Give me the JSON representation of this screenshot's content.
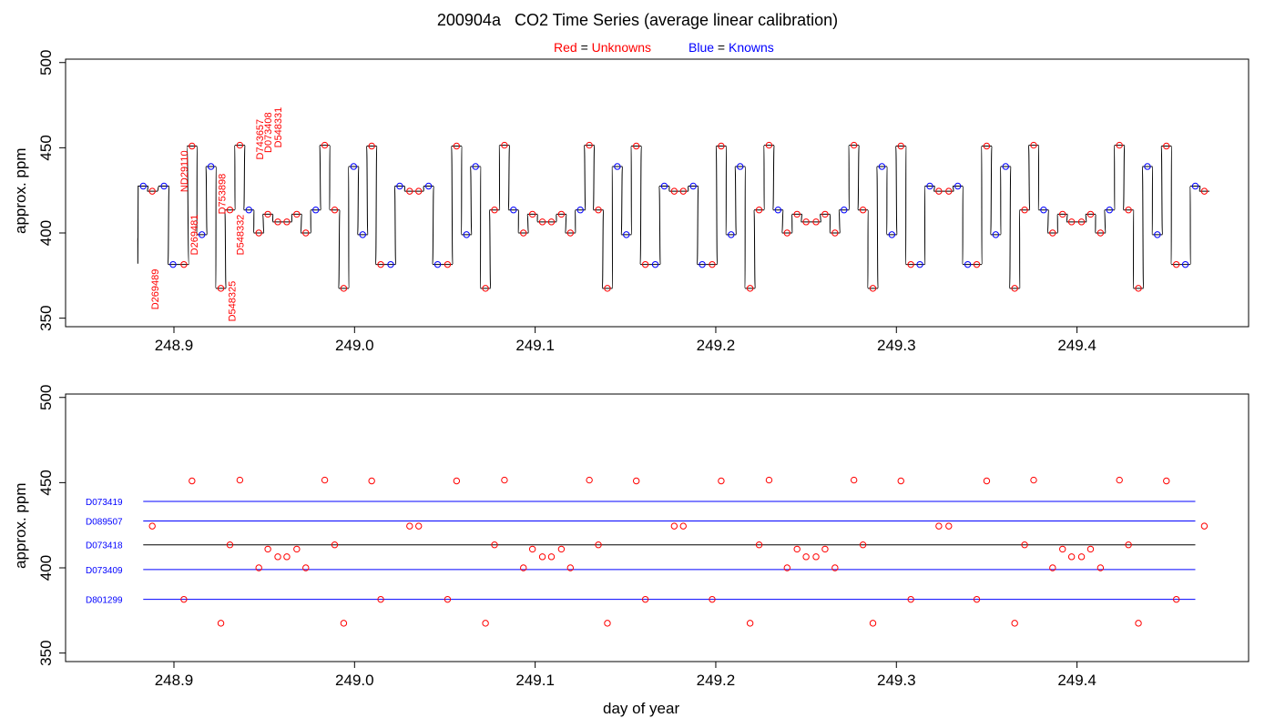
{
  "header": {
    "title_id": "200904a",
    "title_text": "CO2 Time Series (average linear calibration)",
    "legend_red_word": "Red",
    "legend_red_desc": "Unknowns",
    "legend_blue_word": "Blue",
    "legend_blue_desc": "Knowns",
    "equals": "="
  },
  "axes": {
    "top_ylabel": "approx. ppm",
    "bottom_ylabel": "approx. ppm",
    "bottom_xlabel": "day of year"
  },
  "colors": {
    "unknown": "#ff0000",
    "known": "#0000ff",
    "trace": "#000000",
    "axis": "#000000"
  },
  "chart_data": [
    {
      "type": "line",
      "panel": "top",
      "xlim": [
        248.84,
        249.495
      ],
      "ylim": [
        345,
        502
      ],
      "xticks": [
        248.9,
        249.0,
        249.1,
        249.2,
        249.3,
        249.4
      ],
      "yticks": [
        350,
        400,
        450,
        500
      ],
      "segments": [
        {
          "x": 248.883,
          "y": 427.5,
          "t": "k"
        },
        {
          "x": 248.888,
          "y": 424.5,
          "t": "u"
        },
        {
          "x": 248.8945,
          "y": 427.5,
          "t": "k"
        },
        {
          "x": 248.8995,
          "y": 381.5,
          "t": "k"
        },
        {
          "x": 248.9055,
          "y": 381.5,
          "t": "u"
        },
        {
          "x": 248.91,
          "y": 451,
          "t": "u"
        },
        {
          "x": 248.9155,
          "y": 399,
          "t": "k"
        },
        {
          "x": 248.9205,
          "y": 439,
          "t": "k"
        },
        {
          "x": 248.926,
          "y": 367.5,
          "t": "u"
        },
        {
          "x": 248.931,
          "y": 413.5,
          "t": "u"
        },
        {
          "x": 248.9365,
          "y": 451.5,
          "t": "u"
        },
        {
          "x": 248.9415,
          "y": 413.5,
          "t": "k"
        },
        {
          "x": 248.947,
          "y": 400,
          "t": "u"
        },
        {
          "x": 248.952,
          "y": 411,
          "t": "u"
        },
        {
          "x": 248.9575,
          "y": 406.5,
          "t": "u"
        },
        {
          "x": 248.9625,
          "y": 406.5,
          "t": "u"
        },
        {
          "x": 248.968,
          "y": 411,
          "t": "u"
        },
        {
          "x": 248.973,
          "y": 400,
          "t": "u"
        },
        {
          "x": 248.9785,
          "y": 413.5,
          "t": "k"
        },
        {
          "x": 248.9835,
          "y": 451.5,
          "t": "u"
        },
        {
          "x": 248.989,
          "y": 413.5,
          "t": "u"
        },
        {
          "x": 248.994,
          "y": 367.5,
          "t": "u"
        },
        {
          "x": 248.9995,
          "y": 439,
          "t": "k"
        },
        {
          "x": 249.0045,
          "y": 399,
          "t": "k"
        },
        {
          "x": 249.0095,
          "y": 451,
          "t": "u"
        },
        {
          "x": 249.0145,
          "y": 381.5,
          "t": "u"
        },
        {
          "x": 249.02,
          "y": 381.5,
          "t": "k"
        },
        {
          "x": 249.025,
          "y": 427.5,
          "t": "k"
        },
        {
          "x": 249.0305,
          "y": 424.5,
          "t": "u"
        },
        {
          "x": 249.0355,
          "y": 424.5,
          "t": "u"
        },
        {
          "x": 249.041,
          "y": 427.5,
          "t": "k"
        },
        {
          "x": 249.046,
          "y": 381.5,
          "t": "k"
        },
        {
          "x": 249.0515,
          "y": 381.5,
          "t": "u"
        },
        {
          "x": 249.0565,
          "y": 451,
          "t": "u"
        },
        {
          "x": 249.062,
          "y": 399,
          "t": "k"
        },
        {
          "x": 249.067,
          "y": 439,
          "t": "k"
        },
        {
          "x": 249.0725,
          "y": 367.5,
          "t": "u"
        },
        {
          "x": 249.0775,
          "y": 413.5,
          "t": "u"
        },
        {
          "x": 249.083,
          "y": 451.5,
          "t": "u"
        },
        {
          "x": 249.088,
          "y": 413.5,
          "t": "k"
        },
        {
          "x": 249.0935,
          "y": 400,
          "t": "u"
        },
        {
          "x": 249.0985,
          "y": 411,
          "t": "u"
        },
        {
          "x": 249.104,
          "y": 406.5,
          "t": "u"
        },
        {
          "x": 249.109,
          "y": 406.5,
          "t": "u"
        },
        {
          "x": 249.1145,
          "y": 411,
          "t": "u"
        },
        {
          "x": 249.1195,
          "y": 400,
          "t": "u"
        },
        {
          "x": 249.125,
          "y": 413.5,
          "t": "k"
        },
        {
          "x": 249.13,
          "y": 451.5,
          "t": "u"
        },
        {
          "x": 249.135,
          "y": 413.5,
          "t": "u"
        },
        {
          "x": 249.14,
          "y": 367.5,
          "t": "u"
        },
        {
          "x": 249.1455,
          "y": 439,
          "t": "k"
        },
        {
          "x": 249.1505,
          "y": 399,
          "t": "k"
        },
        {
          "x": 249.156,
          "y": 451,
          "t": "u"
        },
        {
          "x": 249.161,
          "y": 381.5,
          "t": "u"
        },
        {
          "x": 249.1665,
          "y": 381.5,
          "t": "k"
        },
        {
          "x": 249.1715,
          "y": 427.5,
          "t": "k"
        },
        {
          "x": 249.177,
          "y": 424.5,
          "t": "u"
        },
        {
          "x": 249.182,
          "y": 424.5,
          "t": "u"
        },
        {
          "x": 249.1875,
          "y": 427.5,
          "t": "k"
        },
        {
          "x": 249.1925,
          "y": 381.5,
          "t": "k"
        },
        {
          "x": 249.198,
          "y": 381.5,
          "t": "u"
        },
        {
          "x": 249.203,
          "y": 451,
          "t": "u"
        },
        {
          "x": 249.2085,
          "y": 399,
          "t": "k"
        },
        {
          "x": 249.2135,
          "y": 439,
          "t": "k"
        },
        {
          "x": 249.219,
          "y": 367.5,
          "t": "u"
        },
        {
          "x": 249.224,
          "y": 413.5,
          "t": "u"
        },
        {
          "x": 249.2295,
          "y": 451.5,
          "t": "u"
        },
        {
          "x": 249.2345,
          "y": 413.5,
          "t": "k"
        },
        {
          "x": 249.2395,
          "y": 400,
          "t": "u"
        },
        {
          "x": 249.245,
          "y": 411,
          "t": "u"
        },
        {
          "x": 249.25,
          "y": 406.5,
          "t": "u"
        },
        {
          "x": 249.2555,
          "y": 406.5,
          "t": "u"
        },
        {
          "x": 249.2605,
          "y": 411,
          "t": "u"
        },
        {
          "x": 249.266,
          "y": 400,
          "t": "u"
        },
        {
          "x": 249.271,
          "y": 413.5,
          "t": "k"
        },
        {
          "x": 249.2765,
          "y": 451.5,
          "t": "u"
        },
        {
          "x": 249.2815,
          "y": 413.5,
          "t": "u"
        },
        {
          "x": 249.287,
          "y": 367.5,
          "t": "u"
        },
        {
          "x": 249.292,
          "y": 439,
          "t": "k"
        },
        {
          "x": 249.2975,
          "y": 399,
          "t": "k"
        },
        {
          "x": 249.3025,
          "y": 451,
          "t": "u"
        },
        {
          "x": 249.308,
          "y": 381.5,
          "t": "u"
        },
        {
          "x": 249.313,
          "y": 381.5,
          "t": "k"
        },
        {
          "x": 249.3185,
          "y": 427.5,
          "t": "k"
        },
        {
          "x": 249.3235,
          "y": 424.5,
          "t": "u"
        },
        {
          "x": 249.329,
          "y": 424.5,
          "t": "u"
        },
        {
          "x": 249.334,
          "y": 427.5,
          "t": "k"
        },
        {
          "x": 249.3395,
          "y": 381.5,
          "t": "k"
        },
        {
          "x": 249.3445,
          "y": 381.5,
          "t": "u"
        },
        {
          "x": 249.35,
          "y": 451,
          "t": "u"
        },
        {
          "x": 249.355,
          "y": 399,
          "t": "k"
        },
        {
          "x": 249.3605,
          "y": 439,
          "t": "k"
        },
        {
          "x": 249.3655,
          "y": 367.5,
          "t": "u"
        },
        {
          "x": 249.371,
          "y": 413.5,
          "t": "u"
        },
        {
          "x": 249.376,
          "y": 451.5,
          "t": "u"
        },
        {
          "x": 249.3815,
          "y": 413.5,
          "t": "k"
        },
        {
          "x": 249.3865,
          "y": 400,
          "t": "u"
        },
        {
          "x": 249.392,
          "y": 411,
          "t": "u"
        },
        {
          "x": 249.397,
          "y": 406.5,
          "t": "u"
        },
        {
          "x": 249.4025,
          "y": 406.5,
          "t": "u"
        },
        {
          "x": 249.4075,
          "y": 411,
          "t": "u"
        },
        {
          "x": 249.413,
          "y": 400,
          "t": "u"
        },
        {
          "x": 249.418,
          "y": 413.5,
          "t": "k"
        },
        {
          "x": 249.4235,
          "y": 451.5,
          "t": "u"
        },
        {
          "x": 249.4285,
          "y": 413.5,
          "t": "u"
        },
        {
          "x": 249.434,
          "y": 367.5,
          "t": "u"
        },
        {
          "x": 249.439,
          "y": 439,
          "t": "k"
        },
        {
          "x": 249.4445,
          "y": 399,
          "t": "k"
        },
        {
          "x": 249.4495,
          "y": 451,
          "t": "u"
        },
        {
          "x": 249.455,
          "y": 381.5,
          "t": "u"
        },
        {
          "x": 249.46,
          "y": 381.5,
          "t": "k"
        },
        {
          "x": 249.4655,
          "y": 427.5,
          "t": "k"
        },
        {
          "x": 249.4705,
          "y": 424.5,
          "t": "u"
        }
      ],
      "trace_start": {
        "x": 248.88,
        "y_low": 382,
        "y_high": 397
      },
      "annotations": [
        {
          "text": "D269489",
          "x": 248.8895,
          "y": 355
        },
        {
          "text": "D269481",
          "x": 248.911,
          "y": 387
        },
        {
          "text": "ND29110",
          "x": 248.9055,
          "y": 424
        },
        {
          "text": "D753898",
          "x": 248.9265,
          "y": 411
        },
        {
          "text": "D548325",
          "x": 248.932,
          "y": 348
        },
        {
          "text": "D548332",
          "x": 248.9365,
          "y": 387
        },
        {
          "text": "D743657",
          "x": 248.9475,
          "y": 443
        },
        {
          "text": "D073408",
          "x": 248.952,
          "y": 447
        },
        {
          "text": "D548331",
          "x": 248.9575,
          "y": 450
        }
      ]
    },
    {
      "type": "scatter",
      "panel": "bottom",
      "xlim": [
        248.84,
        249.495
      ],
      "ylim": [
        345,
        502
      ],
      "xticks": [
        248.9,
        249.0,
        249.1,
        249.2,
        249.3,
        249.4
      ],
      "yticks": [
        350,
        400,
        450,
        500
      ],
      "reference_lines": [
        {
          "label": "D073419",
          "y": 439,
          "color": "#0000ff"
        },
        {
          "label": "D089507",
          "y": 427.5,
          "color": "#0000ff"
        },
        {
          "label": "D073418",
          "y": 413.5,
          "color": "#000000"
        },
        {
          "label": "D073409",
          "y": 399,
          "color": "#0000ff"
        },
        {
          "label": "D801299",
          "y": 381.5,
          "color": "#0000ff"
        }
      ],
      "ref_line_x_range": [
        248.883,
        249.4655
      ]
    }
  ]
}
